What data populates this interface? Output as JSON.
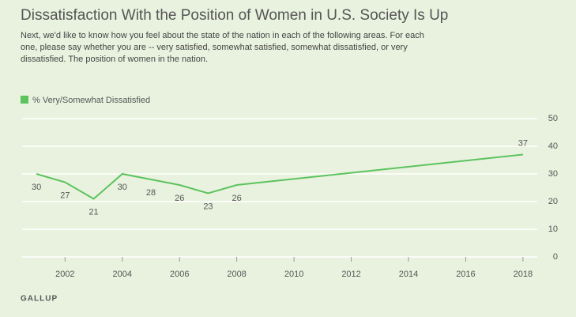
{
  "chart_data": {
    "type": "line",
    "title": "Dissatisfaction With the Position of Women in U.S. Society Is Up",
    "subtitle": "Next, we'd like to know how you feel about the state of the nation in each of the following areas. For each one, please say whether you are -- very satisfied, somewhat satisfied, somewhat dissatisfied, or very dissatisfied. The position of women in the nation.",
    "x": [
      2001,
      2002,
      2003,
      2004,
      2005,
      2006,
      2007,
      2008,
      2018
    ],
    "series": [
      {
        "name": "% Very/Somewhat Dissatisfied",
        "color": "#5cc35f",
        "values": [
          30,
          27,
          21,
          30,
          28,
          26,
          23,
          26,
          37
        ]
      }
    ],
    "xlim": [
      2000.5,
      2018.5
    ],
    "xticks": [
      2002,
      2004,
      2006,
      2008,
      2010,
      2012,
      2014,
      2016,
      2018
    ],
    "ylim": [
      0,
      50
    ],
    "yticks": [
      0,
      10,
      20,
      30,
      40,
      50
    ],
    "grid": true,
    "source": "GALLUP"
  }
}
